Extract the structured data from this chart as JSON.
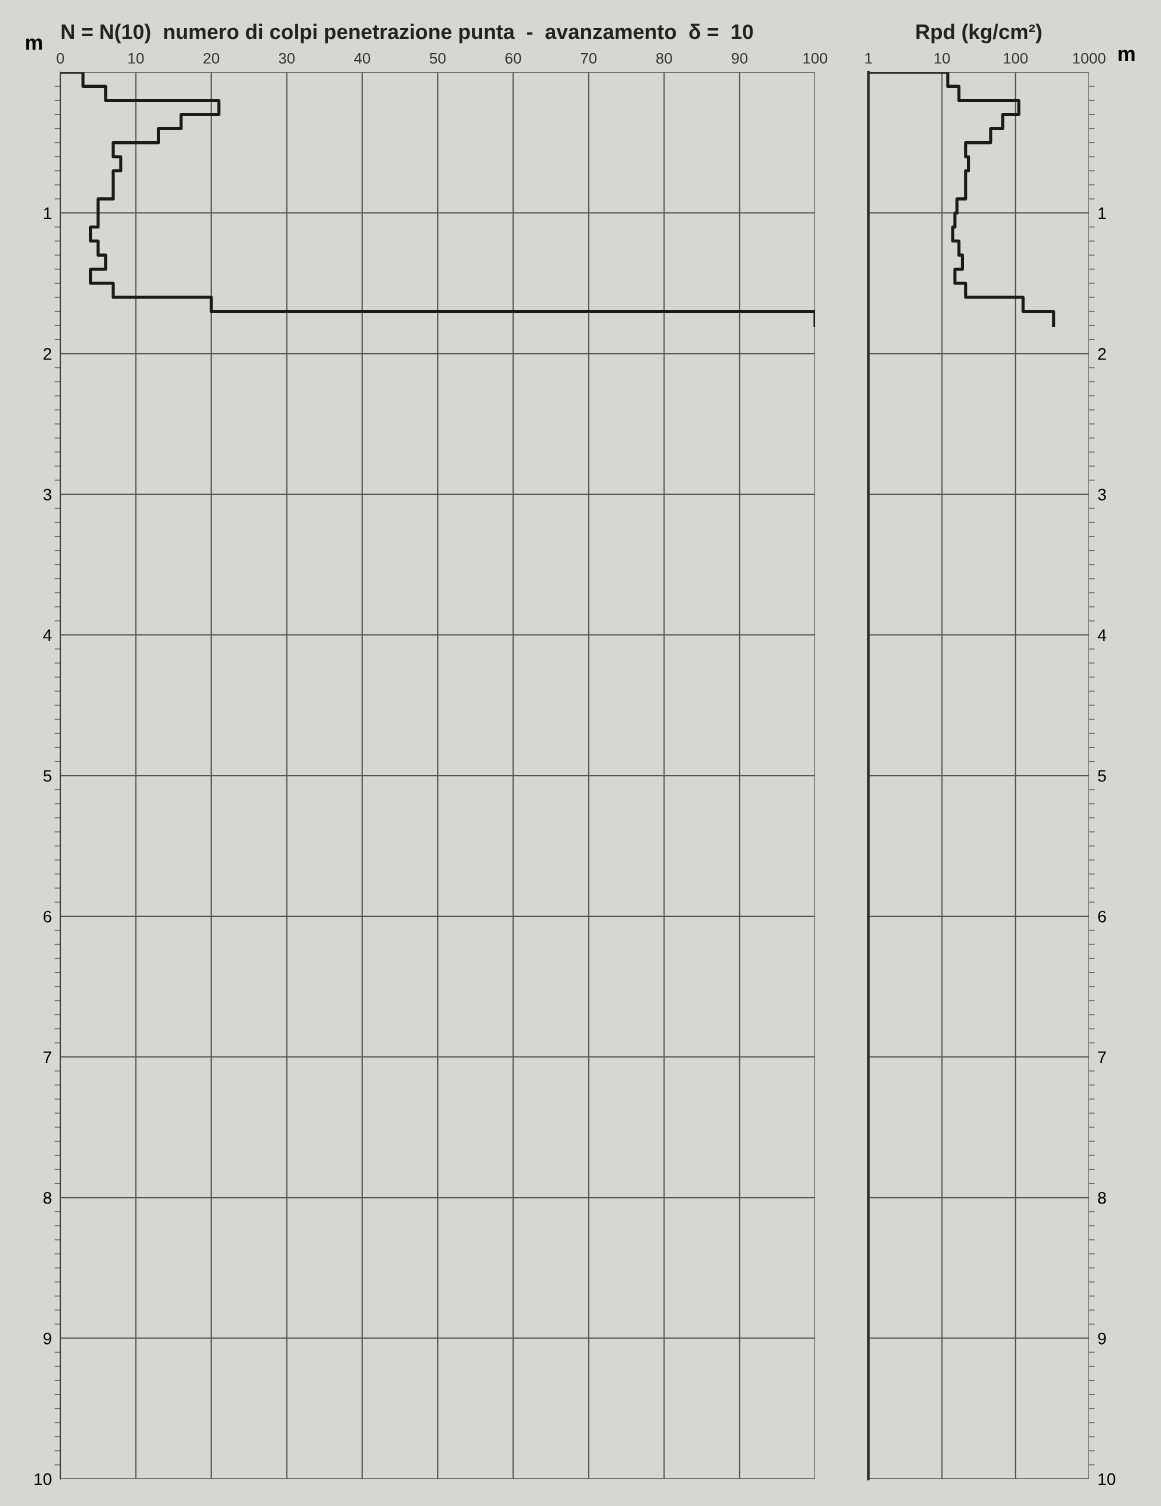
{
  "chart_data": [
    {
      "type": "step",
      "orientation": "horizontal",
      "title": "N = N(10)  numero di colpi penetrazione punta  -  avanzamento  δ =  10",
      "ylabel": "m",
      "x": [
        0,
        0.1,
        0.2,
        0.3,
        0.4,
        0.5,
        0.6,
        0.7,
        0.8,
        0.9,
        1.0,
        1.1,
        1.2,
        1.3,
        1.4,
        1.5,
        1.6,
        1.7,
        1.8
      ],
      "series": [
        {
          "color": "#1a1a1a",
          "values": [
            0,
            3,
            6,
            21,
            16,
            13,
            7,
            8,
            7,
            7,
            5,
            5,
            4,
            5,
            6,
            4,
            7,
            20,
            100
          ]
        }
      ],
      "xlim": [
        0,
        100
      ],
      "xticks": [
        0,
        10,
        20,
        30,
        40,
        50,
        60,
        70,
        80,
        90,
        100
      ],
      "ylim": [
        10,
        0
      ],
      "yticks": [
        {
          "value": 0,
          "label": null
        },
        1,
        2,
        3,
        4,
        5,
        6,
        7,
        8,
        9,
        10
      ],
      "grid": true
    },
    {
      "type": "step",
      "orientation": "horizontal",
      "title": "Rpd (kg/cm²)",
      "ylabel": "m",
      "log": "x",
      "x": [
        0,
        0.1,
        0.2,
        0.3,
        0.4,
        0.5,
        0.6,
        0.7,
        0.8,
        0.9,
        1.0,
        1.1,
        1.2,
        1.3,
        1.4,
        1.5,
        1.6,
        1.7,
        1.8
      ],
      "series": [
        {
          "color": "#1a1a1a",
          "values": [
            1,
            12,
            17,
            111,
            67,
            46,
            21,
            23,
            21,
            21,
            16,
            15,
            14,
            17,
            19,
            15,
            21,
            127,
            330
          ]
        }
      ],
      "xlim": [
        1,
        1000
      ],
      "xticks": [
        1,
        10,
        100,
        1000
      ],
      "ylim": [
        10,
        0
      ],
      "yticks": [
        {
          "value": 0,
          "label": null
        },
        1,
        2,
        3,
        4,
        5,
        6,
        7,
        8,
        9,
        10
      ],
      "grid": true
    }
  ]
}
